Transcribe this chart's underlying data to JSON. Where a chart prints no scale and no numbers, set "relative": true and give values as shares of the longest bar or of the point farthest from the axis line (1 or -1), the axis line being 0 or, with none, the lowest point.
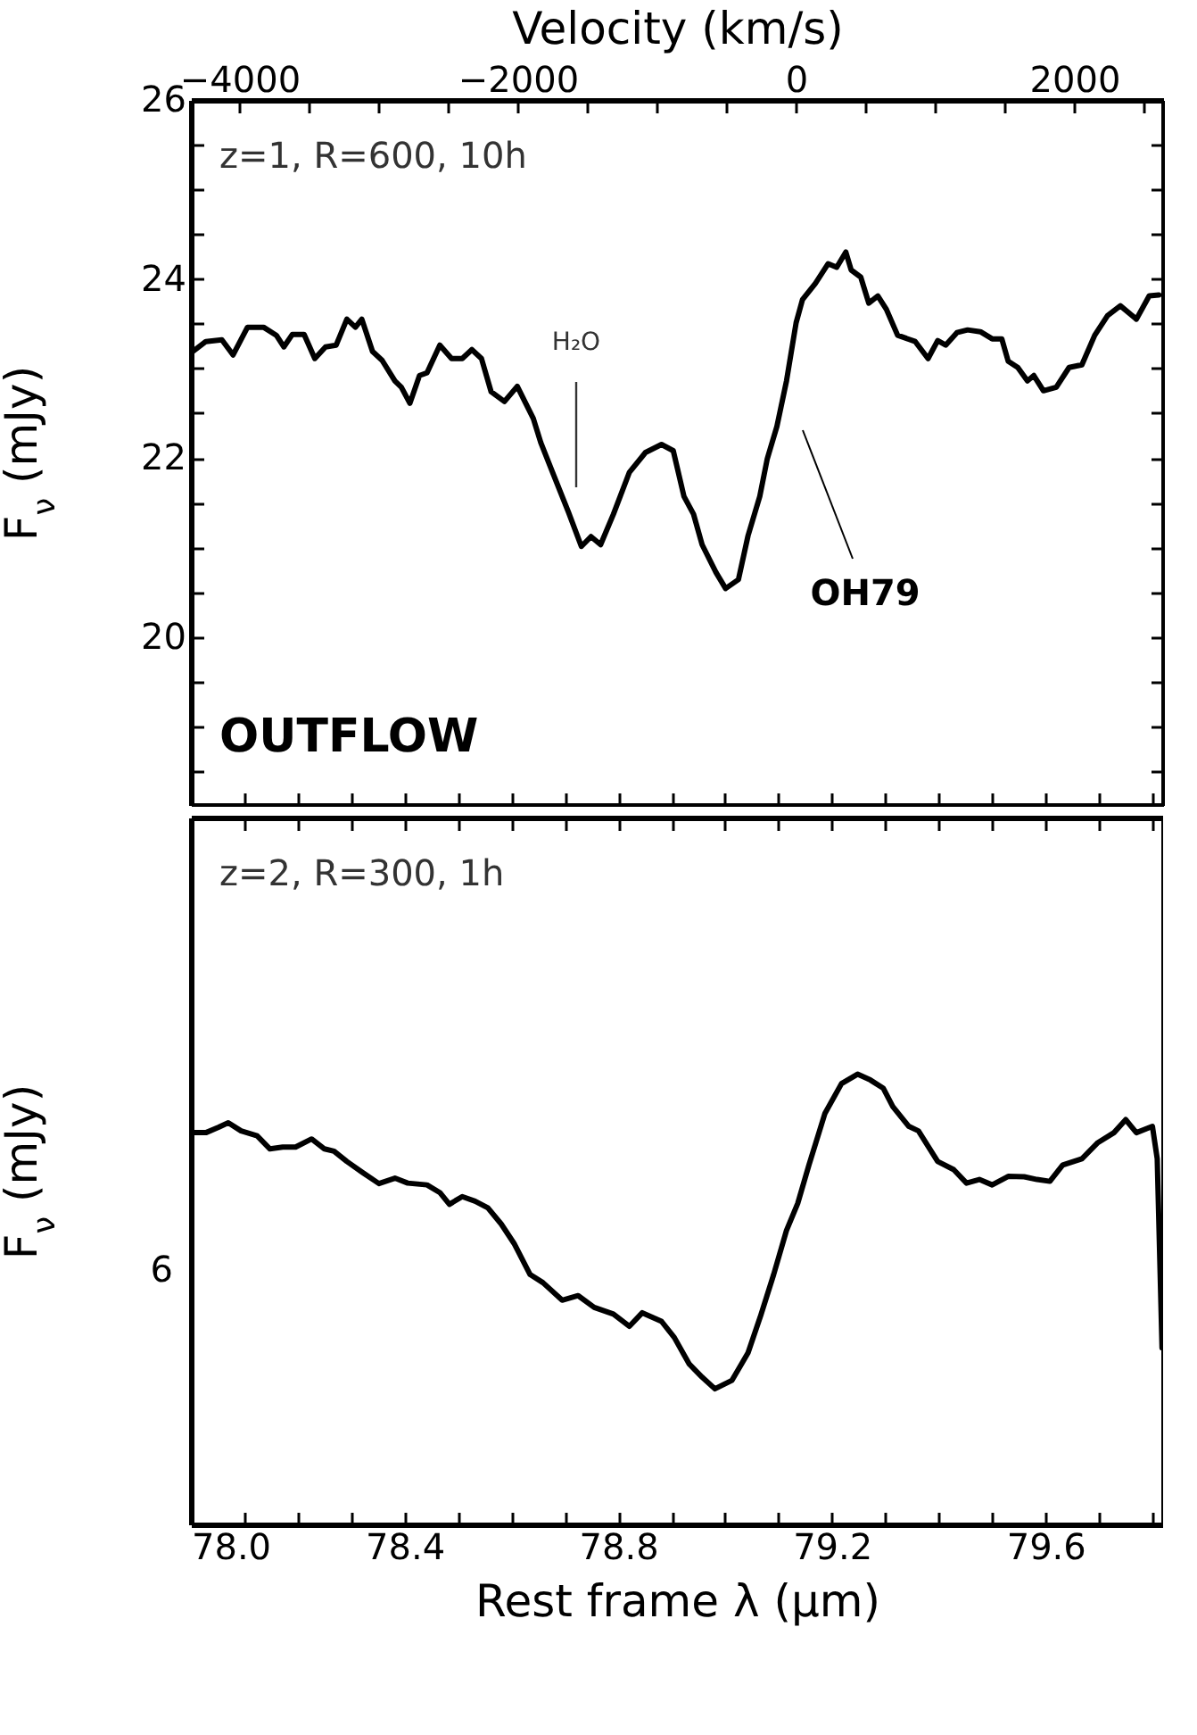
{
  "chart_data": [
    {
      "type": "line",
      "ylabel": "F$_{ν}$ (mJy)",
      "x2label": "Velocity (km/s)",
      "tick_labels": "y",
      "annotations": [
        "z=1, R=600, 10h",
        "OUTFLOW",
        "H₂O",
        "OH79"
      ],
      "xlim": [
        78.0,
        79.82
      ],
      "xticks": [
        78.0,
        78.1,
        78.2,
        78.3,
        78.4,
        78.5,
        78.6,
        78.7,
        78.8,
        78.9,
        79.0,
        79.1,
        79.2,
        79.3,
        79.4,
        79.5,
        79.6,
        79.7,
        79.8
      ],
      "x2lim": [
        -4349,
        2638
      ],
      "x2ticks": [
        {
          "value": -4000,
          "label": "−4000"
        },
        {
          "value": -3500,
          "label": null
        },
        {
          "value": -3000,
          "label": null
        },
        {
          "value": -2500,
          "label": null
        },
        {
          "value": -2000,
          "label": "−2000"
        },
        {
          "value": -1500,
          "label": null
        },
        {
          "value": -1000,
          "label": null
        },
        {
          "value": -500,
          "label": null
        },
        0,
        {
          "value": 500,
          "label": null
        },
        {
          "value": 1000,
          "label": null
        },
        {
          "value": 1500,
          "label": null
        },
        2000,
        {
          "value": 2500,
          "label": null
        }
      ],
      "ylim": [
        18.12,
        26
      ],
      "yticks": [
        {
          "value": 18.5,
          "label": null
        },
        {
          "value": 19,
          "label": null
        },
        {
          "value": 19.5,
          "label": null
        },
        20,
        {
          "value": 20.5,
          "label": null
        },
        {
          "value": 21,
          "label": null
        },
        {
          "value": 21.5,
          "label": null
        },
        22,
        {
          "value": 22.5,
          "label": null
        },
        {
          "value": 23,
          "label": null
        },
        {
          "value": 23.5,
          "label": null
        },
        24,
        {
          "value": 24.5,
          "label": null
        },
        {
          "value": 25,
          "label": null
        },
        {
          "value": 25.5,
          "label": null
        },
        26
      ],
      "series": [
        {
          "color": "#000000",
          "x": [
            78.004,
            78.028,
            78.058,
            78.079,
            78.106,
            78.136,
            78.16,
            78.174,
            78.19,
            78.212,
            78.232,
            78.252,
            78.272,
            78.292,
            78.308,
            78.32,
            78.34,
            78.358,
            78.382,
            78.394,
            78.41,
            78.428,
            78.442,
            78.466,
            78.488,
            78.508,
            78.526,
            78.544,
            78.562,
            78.587,
            78.611,
            78.641,
            78.655,
            78.677,
            78.707,
            78.731,
            78.749,
            78.767,
            78.791,
            78.821,
            78.851,
            78.881,
            78.903,
            78.923,
            78.941,
            78.957,
            78.983,
            79.001,
            79.025,
            79.043,
            79.065,
            79.079,
            79.097,
            79.115,
            79.133,
            79.145,
            79.169,
            79.193,
            79.209,
            79.226,
            79.236,
            79.254,
            79.269,
            79.286,
            79.302,
            79.323,
            79.356,
            79.38,
            79.398,
            79.413,
            79.434,
            79.454,
            79.478,
            79.5,
            79.518,
            79.53,
            79.548,
            79.566,
            79.578,
            79.596,
            79.62,
            79.644,
            79.668,
            79.692,
            79.716,
            79.74,
            79.77,
            79.794,
            79.812
          ],
          "values": [
            23.19,
            23.3,
            23.32,
            23.15,
            23.46,
            23.46,
            23.37,
            23.24,
            23.38,
            23.38,
            23.11,
            23.24,
            23.26,
            23.55,
            23.46,
            23.55,
            23.19,
            23.09,
            22.86,
            22.79,
            22.61,
            22.92,
            22.95,
            23.26,
            23.11,
            23.11,
            23.21,
            23.11,
            22.74,
            22.63,
            22.8,
            22.44,
            22.17,
            21.84,
            21.39,
            21.01,
            21.12,
            21.03,
            21.37,
            21.84,
            22.06,
            22.15,
            22.08,
            21.57,
            21.37,
            21.03,
            20.72,
            20.54,
            20.64,
            21.13,
            21.57,
            21.99,
            22.35,
            22.86,
            23.51,
            23.77,
            23.95,
            24.17,
            24.13,
            24.3,
            24.1,
            24.02,
            23.73,
            23.81,
            23.66,
            23.37,
            23.3,
            23.11,
            23.31,
            23.26,
            23.4,
            23.43,
            23.41,
            23.33,
            23.33,
            23.08,
            23.01,
            22.86,
            22.92,
            22.75,
            22.79,
            23.01,
            23.04,
            23.37,
            23.59,
            23.7,
            23.55,
            23.81,
            23.82
          ]
        }
      ]
    },
    {
      "type": "line",
      "relative": true,
      "xlabel": "Rest frame λ (μm)",
      "ylabel": "F$_{ν}$ (mJy)",
      "annotations": [
        "z=2, R=300, 1h",
        "6"
      ],
      "xlim": [
        78.0,
        79.82
      ],
      "xticks": [
        {
          "value": 78.0,
          "label": "78.0"
        },
        {
          "value": 78.1,
          "label": null
        },
        {
          "value": 78.2,
          "label": null
        },
        {
          "value": 78.3,
          "label": null
        },
        {
          "value": 78.4,
          "label": "78.4"
        },
        {
          "value": 78.5,
          "label": null
        },
        {
          "value": 78.6,
          "label": null
        },
        {
          "value": 78.7,
          "label": null
        },
        {
          "value": 78.8,
          "label": "78.8"
        },
        {
          "value": 78.9,
          "label": null
        },
        {
          "value": 79.0,
          "label": null
        },
        {
          "value": 79.1,
          "label": null
        },
        {
          "value": 79.2,
          "label": "79.2"
        },
        {
          "value": 79.3,
          "label": null
        },
        {
          "value": 79.4,
          "label": null
        },
        {
          "value": 79.5,
          "label": null
        },
        {
          "value": 79.6,
          "label": "79.6"
        },
        {
          "value": 79.7,
          "label": null
        },
        {
          "value": 79.8,
          "label": null
        }
      ],
      "series": [
        {
          "color": "#000000",
          "x": [
            78.004,
            78.028,
            78.052,
            78.07,
            78.094,
            78.124,
            78.148,
            78.172,
            78.196,
            78.226,
            78.25,
            78.268,
            78.292,
            78.322,
            78.352,
            78.382,
            78.406,
            78.442,
            78.466,
            78.484,
            78.508,
            78.532,
            78.556,
            78.581,
            78.605,
            78.635,
            78.659,
            78.695,
            78.725,
            78.755,
            78.791,
            78.821,
            78.845,
            78.881,
            78.905,
            78.933,
            78.957,
            78.981,
            79.013,
            79.043,
            79.067,
            79.091,
            79.115,
            79.136,
            79.157,
            79.187,
            79.218,
            79.248,
            79.272,
            79.296,
            79.314,
            79.344,
            79.362,
            79.398,
            79.428,
            79.452,
            79.476,
            79.5,
            79.53,
            79.56,
            79.584,
            79.608,
            79.632,
            79.668,
            79.698,
            79.728,
            79.75,
            79.77,
            79.8,
            79.809,
            79.818
          ],
          "values": [
            0.87,
            0.87,
            0.882,
            0.892,
            0.874,
            0.863,
            0.834,
            0.838,
            0.838,
            0.856,
            0.834,
            0.829,
            0.806,
            0.781,
            0.757,
            0.769,
            0.758,
            0.754,
            0.737,
            0.711,
            0.728,
            0.718,
            0.703,
            0.667,
            0.624,
            0.555,
            0.537,
            0.498,
            0.508,
            0.482,
            0.467,
            0.44,
            0.47,
            0.451,
            0.415,
            0.356,
            0.327,
            0.301,
            0.32,
            0.381,
            0.465,
            0.555,
            0.653,
            0.713,
            0.798,
            0.913,
            0.979,
            1,
            0.987,
            0.969,
            0.928,
            0.884,
            0.874,
            0.806,
            0.788,
            0.758,
            0.766,
            0.754,
            0.773,
            0.772,
            0.766,
            0.762,
            0.798,
            0.812,
            0.848,
            0.87,
            0.899,
            0.87,
            0.884,
            0.812,
            0.392
          ]
        }
      ]
    }
  ]
}
